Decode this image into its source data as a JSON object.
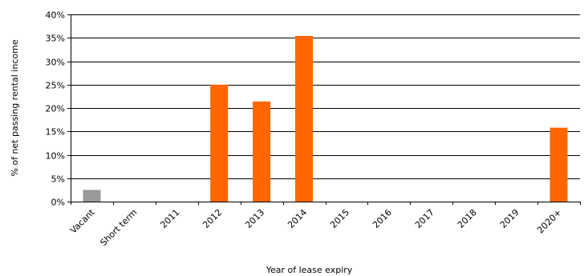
{
  "chart_data": {
    "type": "bar",
    "title": "",
    "xlabel": "Year of lease expiry",
    "ylabel": "% of net passing rental income",
    "categories": [
      "Vacant",
      "Short term",
      "2011",
      "2012",
      "2013",
      "2014",
      "2015",
      "2016",
      "2017",
      "2018",
      "2019",
      "2020+"
    ],
    "values": [
      2.5,
      0,
      0,
      25.0,
      21.4,
      35.4,
      0,
      0,
      0,
      0,
      0,
      15.8
    ],
    "bar_colors": [
      "#999999",
      "#FF6600",
      "#FF6600",
      "#FF6600",
      "#FF6600",
      "#FF6600",
      "#FF6600",
      "#FF6600",
      "#FF6600",
      "#FF6600",
      "#FF6600",
      "#FF6600"
    ],
    "ylim": [
      0,
      40
    ],
    "yticks": [
      0,
      5,
      10,
      15,
      20,
      25,
      30,
      35,
      40
    ],
    "ytick_labels": [
      "0%",
      "5%",
      "10%",
      "15%",
      "20%",
      "25%",
      "30%",
      "35%",
      "40%"
    ],
    "grid": true,
    "legend": "none"
  }
}
